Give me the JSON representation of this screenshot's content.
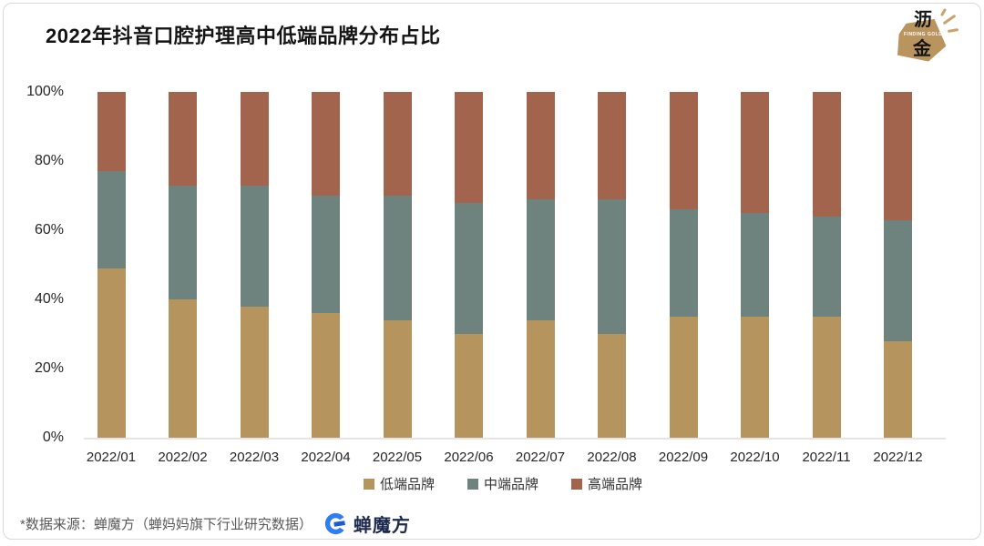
{
  "header": {
    "title": "2022年抖音口腔护理高中低端品牌分布占比"
  },
  "badge": {
    "char_top": "沥",
    "char_bottom": "金",
    "subtext": "FINDING GOLD",
    "color": "#ba945e"
  },
  "chart_data": {
    "type": "bar",
    "stacked": true,
    "title": "2022年抖音口腔护理高中低端品牌分布占比",
    "categories": [
      "2022/01",
      "2022/02",
      "2022/03",
      "2022/04",
      "2022/05",
      "2022/06",
      "2022/07",
      "2022/08",
      "2022/09",
      "2022/10",
      "2022/11",
      "2022/12"
    ],
    "series": [
      {
        "name": "低端品牌",
        "color": "#b5945e",
        "values": [
          49,
          40,
          38,
          36,
          34,
          30,
          34,
          30,
          35,
          35,
          35,
          28
        ]
      },
      {
        "name": "中端品牌",
        "color": "#6f837e",
        "values": [
          28,
          33,
          35,
          34,
          36,
          38,
          35,
          39,
          31,
          30,
          29,
          35
        ]
      },
      {
        "name": "高端品牌",
        "color": "#a3644e",
        "values": [
          23,
          27,
          27,
          30,
          30,
          32,
          31,
          31,
          34,
          35,
          36,
          37
        ]
      }
    ],
    "xlabel": "",
    "ylabel": "",
    "ylim": [
      0,
      100
    ],
    "yticks": [
      "0%",
      "20%",
      "40%",
      "60%",
      "80%",
      "100%"
    ],
    "grid": false,
    "legend_position": "bottom",
    "unit": "percent of monthly total"
  },
  "footer": {
    "source_note": "*数据来源：蝉魔方（蝉妈妈旗下行业研究数据）",
    "brand": "蝉魔方"
  },
  "colors": {
    "low_end": "#b5945e",
    "mid_end": "#6f837e",
    "high_end": "#a3644e",
    "axis_line": "#e7e5e4",
    "badge_gold": "#ba945e",
    "logo_blue": "#2e7cf6",
    "logo_blue_dark": "#1e5ad7"
  }
}
